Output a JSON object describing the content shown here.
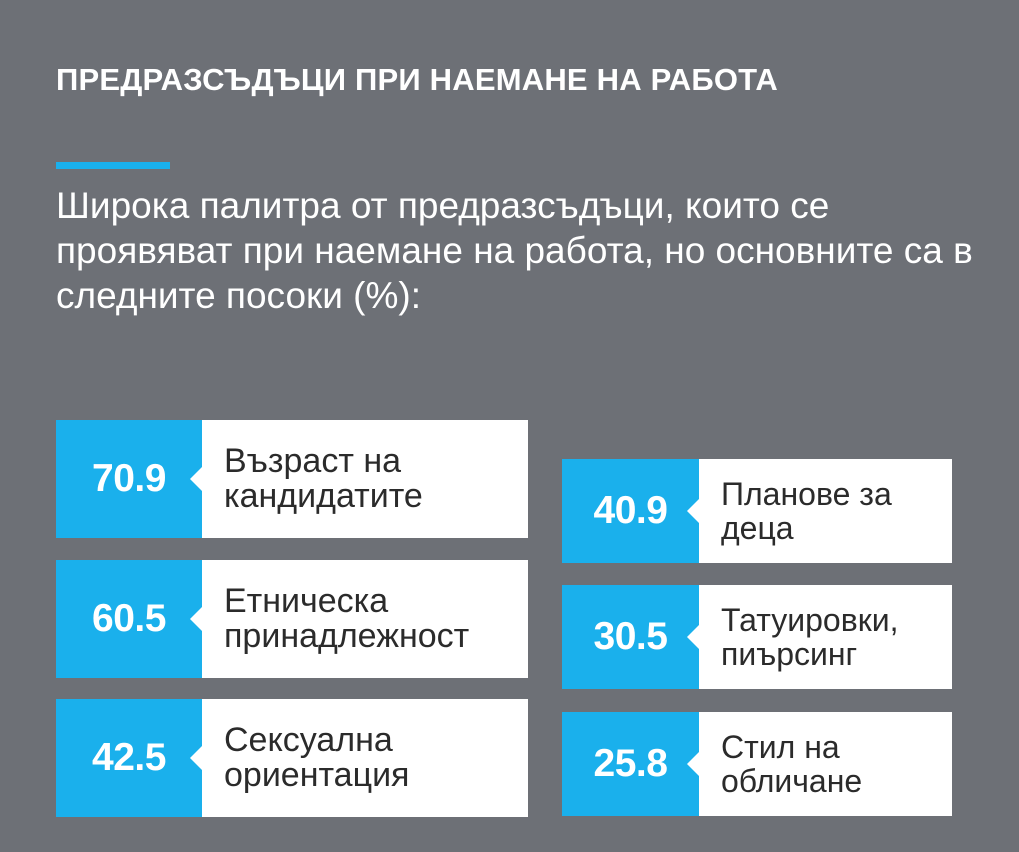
{
  "title": "ПРЕДРАЗСЪДЪЦИ ПРИ НАЕМАНЕ НА РАБОТА",
  "subtitle": "Широка палитра от предразсъдъци, които се проявяват при наемане на работа, но основните са в следните посоки (%):",
  "colors": {
    "background": "#6d7076",
    "accent": "#1ab0ec",
    "card": "#ffffff",
    "label_text": "#2b2b2b"
  },
  "chart_data": {
    "type": "table",
    "title": "ПРЕДРАЗСЪДЪЦИ ПРИ НАЕМАНЕ НА РАБОТА",
    "unit": "%",
    "items": [
      {
        "value": "70.9",
        "label": "Възраст на кандидатите"
      },
      {
        "value": "60.5",
        "label": "Етническа принадлежност"
      },
      {
        "value": "42.5",
        "label": "Сексуална ориентация"
      },
      {
        "value": "40.9",
        "label": "Планове за деца"
      },
      {
        "value": "30.5",
        "label": "Татуировки, пиърсинг"
      },
      {
        "value": "25.8",
        "label": "Стил на обличане"
      }
    ]
  }
}
